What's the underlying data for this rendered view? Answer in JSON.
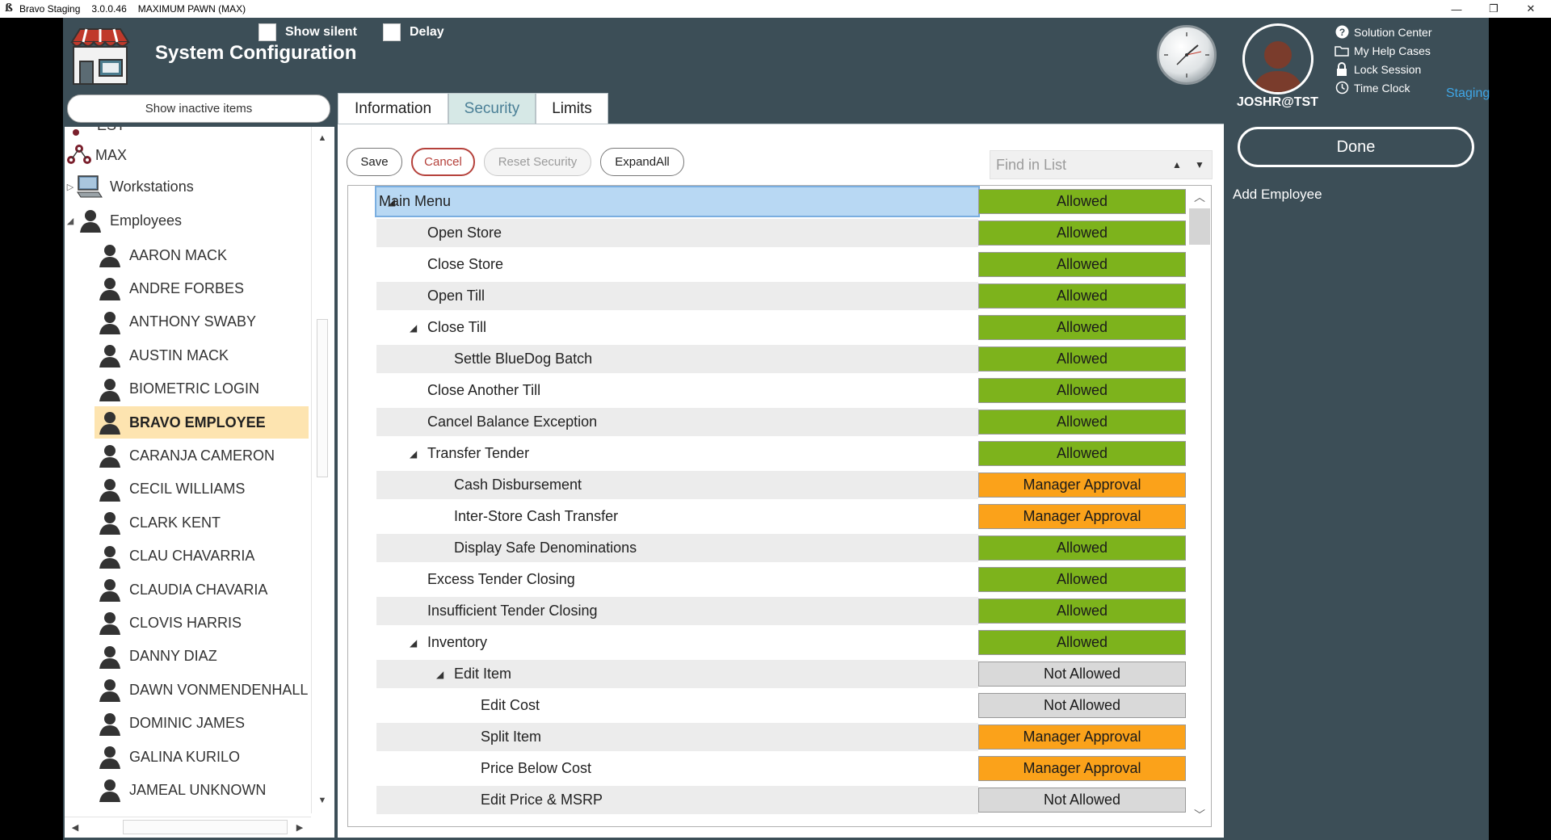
{
  "titlebar": {
    "app_name": "Bravo Staging",
    "version": "3.0.0.46",
    "store": "MAXIMUM PAWN (MAX)",
    "minimize": "—",
    "restore": "❐",
    "close": "✕"
  },
  "header": {
    "show_silent_label": "Show silent",
    "delay_label": "Delay",
    "title": "System Configuration",
    "user": "JOSHR@TST",
    "staging_label": "Staging",
    "links": [
      "Solution Center",
      "My Help Cases",
      "Lock Session",
      "Time Clock"
    ]
  },
  "right_panel": {
    "done_label": "Done",
    "add_employee_label": "Add Employee"
  },
  "left_panel": {
    "show_inactive_label": "Show inactive items",
    "partial_top": "EST",
    "nodes": [
      {
        "label": "MAX",
        "icon": "store-network-icon"
      },
      {
        "label": "Workstations",
        "icon": "computer-icon",
        "expander": "▷"
      },
      {
        "label": "Employees",
        "icon": "person-icon",
        "expander": "◢"
      }
    ],
    "employees": [
      "AARON MACK",
      "ANDRE FORBES",
      "ANTHONY SWABY",
      "AUSTIN MACK",
      "BIOMETRIC LOGIN",
      "BRAVO EMPLOYEE",
      "CARANJA CAMERON",
      "CECIL WILLIAMS",
      "CLARK KENT",
      "CLAU CHAVARRIA",
      "CLAUDIA CHAVARIA",
      "CLOVIS HARRIS",
      "DANNY DIAZ",
      "DAWN VONMENDENHALL",
      "DOMINIC JAMES",
      "GALINA KURILO",
      "JAMEAL UNKNOWN"
    ],
    "selected_employee": "BRAVO EMPLOYEE"
  },
  "tabs": [
    {
      "label": "Information",
      "active": false
    },
    {
      "label": "Security",
      "active": true
    },
    {
      "label": "Limits",
      "active": false
    }
  ],
  "toolbar": {
    "save_label": "Save",
    "cancel_label": "Cancel",
    "reset_label": "Reset Security",
    "expand_label": "ExpandAll",
    "find_placeholder": "Find in List"
  },
  "colors": {
    "allowed": "#7db31c",
    "manager_approval": "#fba21a",
    "not_allowed": "#d9d9d9",
    "background": "#3c4e57",
    "staging": "#3fa6e6"
  },
  "permissions": [
    {
      "label": "Main Menu",
      "level": 0,
      "expander": true,
      "status": "Allowed",
      "selected": true
    },
    {
      "label": "Open Store",
      "level": 1,
      "expander": false,
      "status": "Allowed"
    },
    {
      "label": "Close Store",
      "level": 1,
      "expander": false,
      "status": "Allowed"
    },
    {
      "label": "Open Till",
      "level": 1,
      "expander": false,
      "status": "Allowed"
    },
    {
      "label": "Close Till",
      "level": 1,
      "expander": true,
      "status": "Allowed"
    },
    {
      "label": "Settle BlueDog Batch",
      "level": 2,
      "expander": false,
      "status": "Allowed"
    },
    {
      "label": "Close Another Till",
      "level": 1,
      "expander": false,
      "status": "Allowed"
    },
    {
      "label": "Cancel Balance Exception",
      "level": 1,
      "expander": false,
      "status": "Allowed"
    },
    {
      "label": "Transfer Tender",
      "level": 1,
      "expander": true,
      "status": "Allowed"
    },
    {
      "label": "Cash Disbursement",
      "level": 2,
      "expander": false,
      "status": "Manager Approval"
    },
    {
      "label": "Inter-Store Cash Transfer",
      "level": 2,
      "expander": false,
      "status": "Manager Approval"
    },
    {
      "label": "Display Safe Denominations",
      "level": 2,
      "expander": false,
      "status": "Allowed"
    },
    {
      "label": "Excess Tender Closing",
      "level": 1,
      "expander": false,
      "status": "Allowed"
    },
    {
      "label": "Insufficient Tender Closing",
      "level": 1,
      "expander": false,
      "status": "Allowed"
    },
    {
      "label": "Inventory",
      "level": 1,
      "expander": true,
      "status": "Allowed"
    },
    {
      "label": "Edit Item",
      "level": 2,
      "expander": true,
      "status": "Not Allowed"
    },
    {
      "label": "Edit Cost",
      "level": 3,
      "expander": false,
      "status": "Not Allowed"
    },
    {
      "label": "Split Item",
      "level": 3,
      "expander": false,
      "status": "Manager Approval"
    },
    {
      "label": "Price Below Cost",
      "level": 3,
      "expander": false,
      "status": "Manager Approval"
    },
    {
      "label": "Edit Price & MSRP",
      "level": 3,
      "expander": false,
      "status": "Not Allowed"
    }
  ]
}
